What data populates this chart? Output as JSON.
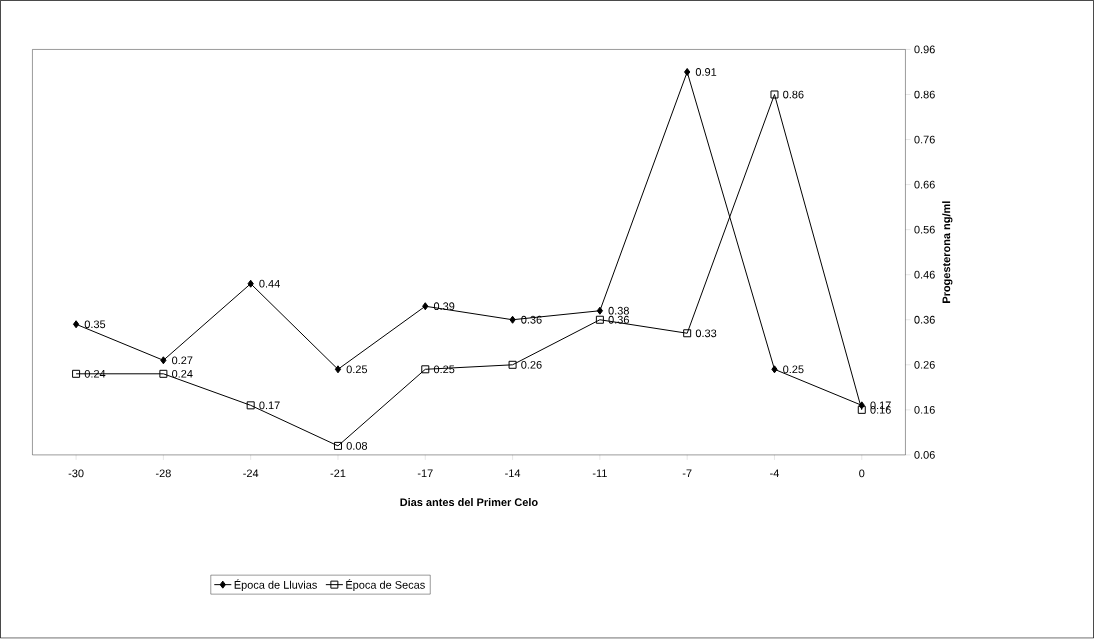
{
  "chart_data": {
    "type": "line",
    "xlabel": "Dias antes del Primer Celo",
    "ylabel": "Progesterona ng/ml",
    "categories": [
      "-30",
      "-28",
      "-24",
      "-21",
      "-17",
      "-14",
      "-11",
      "-7",
      "-4",
      "0"
    ],
    "series": [
      {
        "name": "Época de Lluvias",
        "color": "#000000",
        "marker": "diamond",
        "values": [
          0.35,
          0.27,
          0.44,
          0.25,
          0.39,
          0.36,
          0.38,
          0.91,
          0.25,
          0.17
        ]
      },
      {
        "name": "Época de Secas",
        "color": "#000000",
        "marker": "square",
        "values": [
          0.24,
          0.24,
          0.17,
          0.08,
          0.25,
          0.26,
          0.36,
          0.33,
          0.86,
          0.16
        ]
      }
    ],
    "ylim": [
      0.06,
      0.96
    ],
    "yticks": [
      0.06,
      0.16,
      0.26,
      0.36,
      0.46,
      0.56,
      0.66,
      0.76,
      0.86,
      0.96
    ],
    "data_labels": true,
    "legend": "bottom",
    "grid": false,
    "line_style": "solid"
  }
}
